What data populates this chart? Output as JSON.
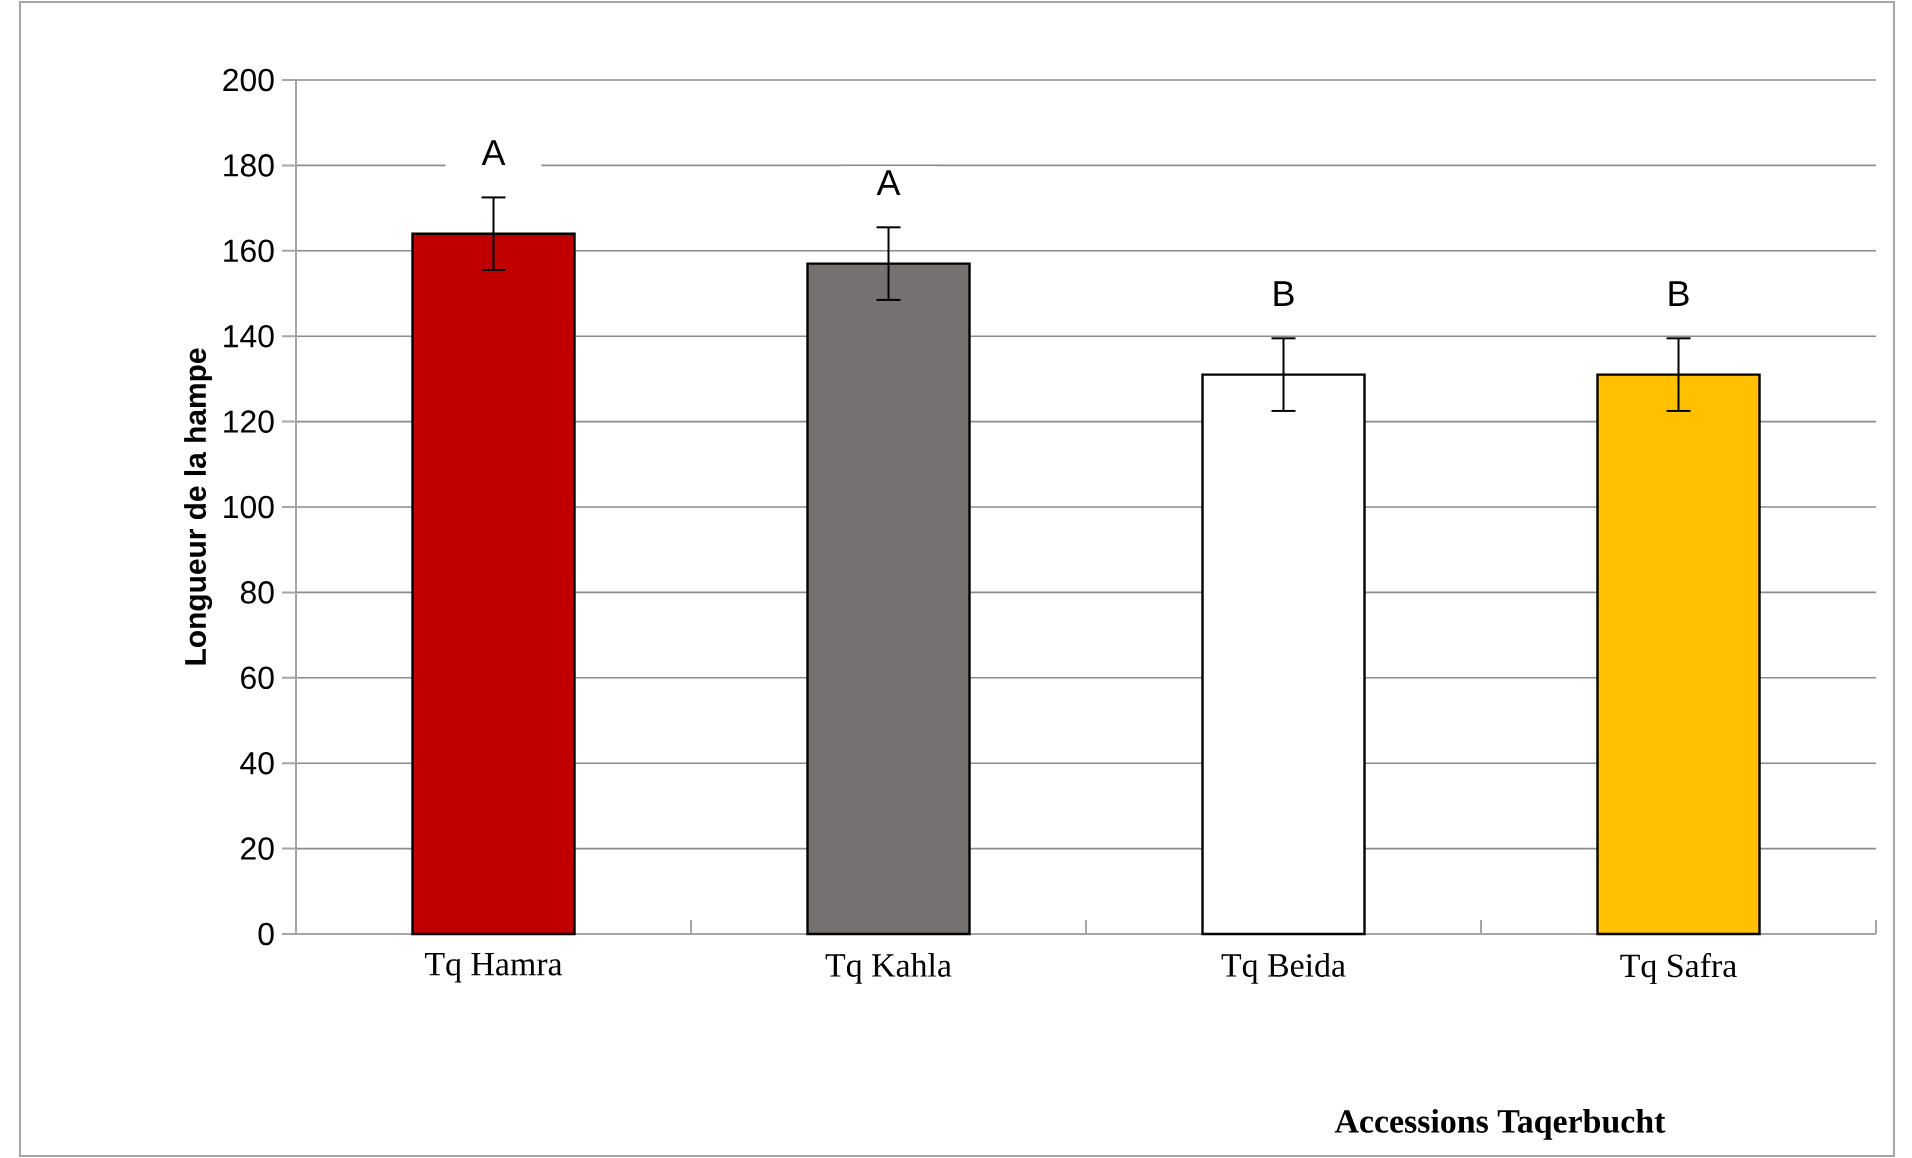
{
  "chart_data": {
    "type": "bar",
    "xlabel": "Accessions Taqerbucht",
    "ylabel": "Longueur de la hampe",
    "categories": [
      "Tq Hamra",
      "Tq  Kahla",
      "Tq  Beida",
      "Tq Safra"
    ],
    "values": [
      164,
      157,
      131,
      131
    ],
    "errors": [
      8.5,
      8.5,
      8.5,
      8.5
    ],
    "colors": [
      "#c00000",
      "#767171",
      "#ffffff",
      "#ffc000"
    ],
    "ylim": [
      0,
      200
    ],
    "yticks": [
      0,
      20,
      40,
      60,
      80,
      100,
      120,
      140,
      160,
      180,
      200
    ],
    "grid": "y",
    "annotations": [
      "A",
      "A",
      "B",
      "B"
    ]
  }
}
